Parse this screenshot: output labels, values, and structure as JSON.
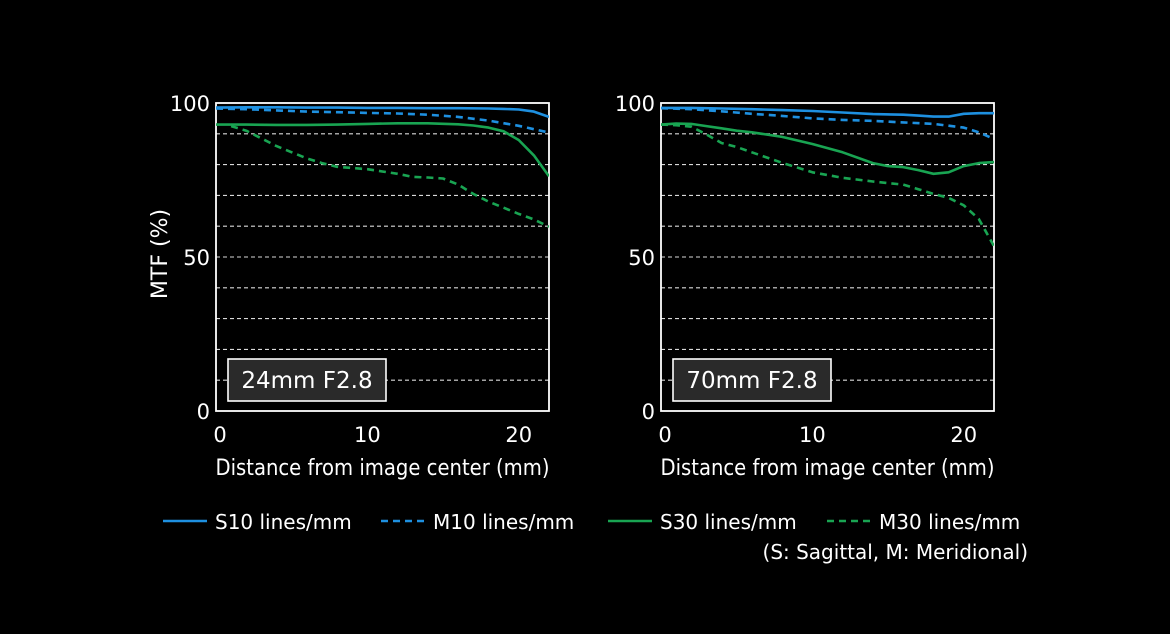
{
  "chart_data": [
    {
      "type": "line",
      "annotation": "24mm F2.8",
      "ylabel": "MTF (%)",
      "xlabel": "Distance from image center (mm)",
      "xlim": [
        0,
        22
      ],
      "ylim": [
        0,
        100
      ],
      "xticks": [
        0,
        10,
        20
      ],
      "yticks": [
        0,
        50,
        100
      ],
      "grid": "horizontal dashed every 10",
      "series": [
        {
          "name": "S10 lines/mm",
          "x": [
            0,
            2,
            4,
            6,
            8,
            10,
            12,
            14,
            16,
            18,
            19,
            20,
            21,
            22
          ],
          "values": [
            98.5,
            98.6,
            98.6,
            98.5,
            98.5,
            98.4,
            98.4,
            98.3,
            98.3,
            98.2,
            98.1,
            97.9,
            97.2,
            95.5
          ]
        },
        {
          "name": "M10 lines/mm",
          "x": [
            0,
            2,
            4,
            6,
            8,
            10,
            12,
            14,
            16,
            18,
            20,
            21,
            22
          ],
          "values": [
            98.2,
            98,
            97.6,
            97.2,
            97,
            96.8,
            96.6,
            96.2,
            95.5,
            94.3,
            92.6,
            91.5,
            90.4
          ]
        },
        {
          "name": "S30 lines/mm",
          "x": [
            0,
            2,
            4,
            6,
            8,
            10,
            12,
            14,
            16,
            17,
            18,
            19,
            20,
            21,
            22
          ],
          "values": [
            93,
            93,
            92.9,
            92.9,
            93,
            93.2,
            93.4,
            93.4,
            93.1,
            92.7,
            92,
            90.8,
            88,
            83,
            76.2
          ]
        },
        {
          "name": "M30 lines/mm",
          "x": [
            1,
            2,
            3,
            4,
            5,
            6,
            7,
            8,
            10,
            12,
            13,
            14,
            15,
            16,
            17,
            18,
            19,
            20,
            21,
            22
          ],
          "values": [
            92.5,
            91,
            88.5,
            86,
            84,
            82,
            80.5,
            79.3,
            78.5,
            77,
            76,
            75.8,
            75.5,
            73.5,
            70.5,
            68,
            66,
            64,
            62.2,
            59.8
          ]
        }
      ]
    },
    {
      "type": "line",
      "annotation": "70mm F2.8",
      "ylabel": "",
      "xlabel": "Distance from image center (mm)",
      "xlim": [
        0,
        22
      ],
      "ylim": [
        0,
        100
      ],
      "xticks": [
        0,
        10,
        20
      ],
      "yticks": [
        0,
        50,
        100
      ],
      "grid": "horizontal dashed every 10",
      "series": [
        {
          "name": "S10 lines/mm",
          "x": [
            0,
            2,
            4,
            6,
            8,
            10,
            12,
            14,
            16,
            17,
            18,
            19,
            20,
            21,
            22
          ],
          "values": [
            98.4,
            98.4,
            98.2,
            98,
            97.7,
            97.4,
            96.9,
            96.4,
            96.2,
            95.9,
            95.6,
            95.6,
            96.5,
            96.7,
            96.7
          ]
        },
        {
          "name": "M10 lines/mm",
          "x": [
            0,
            2,
            4,
            6,
            8,
            10,
            12,
            14,
            16,
            18,
            20,
            21,
            22
          ],
          "values": [
            98.3,
            98,
            97.3,
            96.5,
            95.8,
            95,
            94.5,
            94.2,
            93.7,
            93.2,
            92,
            90.5,
            88.3
          ]
        },
        {
          "name": "S30 lines/mm",
          "x": [
            0,
            1,
            2,
            3,
            4,
            5,
            6,
            8,
            10,
            12,
            14,
            15,
            16,
            17,
            18,
            19,
            20,
            21,
            22
          ],
          "values": [
            93,
            93.3,
            93.2,
            92.5,
            91.8,
            91,
            90.5,
            89,
            86.7,
            84,
            80.5,
            79.5,
            79.2,
            78.2,
            77,
            77.5,
            79.5,
            80.5,
            80.8
          ]
        },
        {
          "name": "M30 lines/mm",
          "x": [
            0,
            1,
            2,
            3,
            4,
            5,
            6,
            8,
            10,
            12,
            14,
            15,
            16,
            17,
            18,
            19,
            20,
            21,
            22
          ],
          "values": [
            93,
            92.8,
            92.3,
            89.8,
            87,
            85.7,
            84,
            80.6,
            77.5,
            75.7,
            74.5,
            74,
            73.5,
            72,
            70.5,
            69.2,
            66.8,
            62.3,
            53.5
          ]
        }
      ]
    }
  ],
  "legend": {
    "items": [
      {
        "label": "S10 lines/mm",
        "color": "#1e90e0",
        "dash": "solid"
      },
      {
        "label": "M10 lines/mm",
        "color": "#1e90e0",
        "dash": "dashed"
      },
      {
        "label": "S30 lines/mm",
        "color": "#19a452",
        "dash": "solid"
      },
      {
        "label": "M30 lines/mm",
        "color": "#19a452",
        "dash": "dashed"
      }
    ],
    "note": "(S: Sagittal, M: Meridional)"
  }
}
